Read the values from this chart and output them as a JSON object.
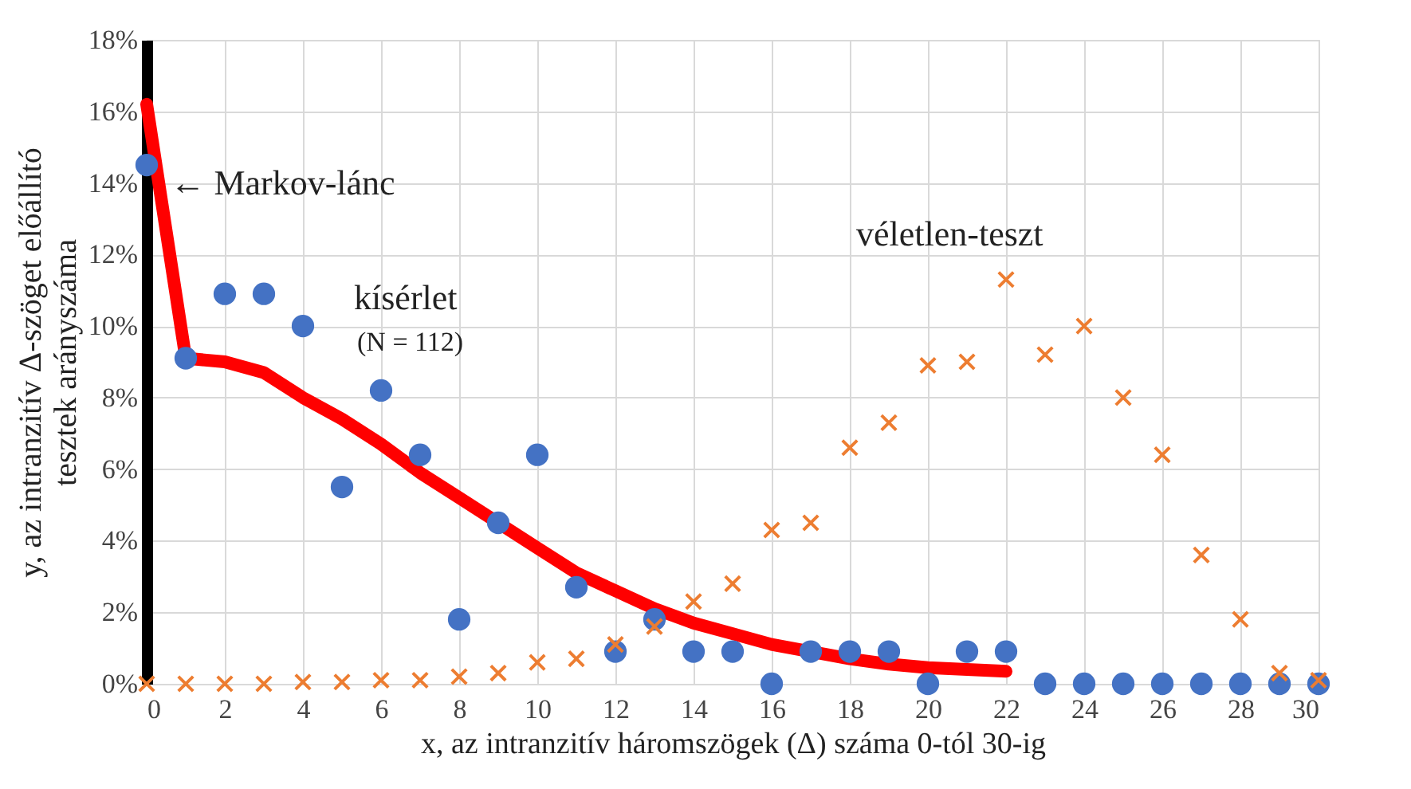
{
  "chart_data": {
    "type": "scatter",
    "xlabel": "x, az intranzitív háromszögek (Δ) száma 0-tól 30-ig",
    "ylabel": "y, az intranzitív Δ-szöget előállító\ntesztek arányszáma",
    "xlim": [
      0,
      30
    ],
    "xticks": [
      0,
      2,
      4,
      6,
      8,
      10,
      12,
      14,
      16,
      18,
      20,
      22,
      24,
      26,
      28,
      30
    ],
    "ylim": [
      0,
      18
    ],
    "yticks": [
      {
        "value": 0,
        "label": "0%"
      },
      {
        "value": 2,
        "label": "2%"
      },
      {
        "value": 4,
        "label": "4%"
      },
      {
        "value": 6,
        "label": "6%"
      },
      {
        "value": 8,
        "label": "8%"
      },
      {
        "value": 10,
        "label": "10%"
      },
      {
        "value": 12,
        "label": "12%"
      },
      {
        "value": 14,
        "label": "14%"
      },
      {
        "value": 16,
        "label": "16%"
      },
      {
        "value": 18,
        "label": "18%"
      }
    ],
    "grid": true,
    "series": [
      {
        "type": "line",
        "color": "#ff0000",
        "marker": "none",
        "x": [
          0,
          1,
          2,
          3,
          4,
          5,
          6,
          7,
          8,
          9,
          10,
          11,
          12,
          13,
          14,
          15,
          16,
          17,
          18,
          19,
          20,
          21,
          22
        ],
        "values": [
          16.2,
          9.1,
          9.0,
          8.7,
          8.0,
          7.4,
          6.7,
          5.9,
          5.2,
          4.5,
          3.8,
          3.1,
          2.6,
          2.1,
          1.7,
          1.4,
          1.1,
          0.9,
          0.7,
          0.55,
          0.45,
          0.4,
          0.35
        ]
      },
      {
        "type": "scatter",
        "color": "#4472c4",
        "marker": "circle",
        "x": [
          0,
          1,
          2,
          3,
          4,
          5,
          6,
          7,
          8,
          9,
          10,
          11,
          12,
          13,
          14,
          15,
          16,
          17,
          18,
          19,
          20,
          21,
          22,
          23,
          24,
          25,
          26,
          27,
          28,
          29,
          30
        ],
        "values": [
          14.5,
          9.1,
          10.9,
          10.9,
          10.0,
          5.5,
          8.2,
          6.4,
          1.8,
          4.5,
          6.4,
          2.7,
          0.9,
          1.8,
          0.9,
          0.9,
          0,
          0.9,
          0.9,
          0.9,
          0,
          0.9,
          0.9,
          0,
          0,
          0,
          0,
          0,
          0,
          0,
          0
        ]
      },
      {
        "type": "scatter",
        "color": "#ed7d31",
        "marker": "cross",
        "x": [
          0,
          1,
          2,
          3,
          4,
          5,
          6,
          7,
          8,
          9,
          10,
          11,
          12,
          13,
          14,
          15,
          16,
          17,
          18,
          19,
          20,
          21,
          22,
          23,
          24,
          25,
          26,
          27,
          28,
          29,
          30
        ],
        "values": [
          0,
          0,
          0,
          0,
          0.05,
          0.05,
          0.1,
          0.1,
          0.2,
          0.3,
          0.6,
          0.7,
          1.1,
          1.6,
          2.3,
          2.8,
          4.3,
          4.5,
          6.6,
          7.3,
          8.9,
          9.0,
          11.3,
          9.2,
          10.0,
          8.0,
          6.4,
          3.6,
          1.8,
          0.3,
          0.1
        ]
      }
    ],
    "annotations": [
      {
        "text": "← Markov-lánc",
        "x": 0.6,
        "y": 14
      },
      "kísérlet",
      "(N = 112)",
      "véletlen-teszt"
    ]
  }
}
